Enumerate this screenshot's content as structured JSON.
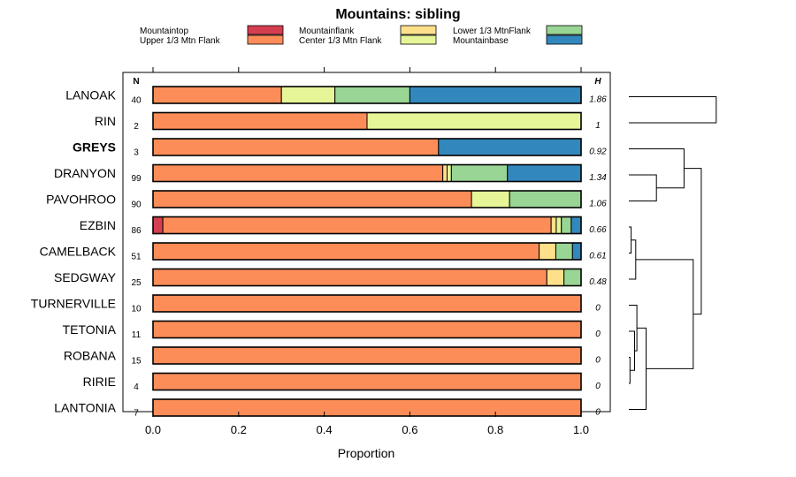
{
  "chart_data": {
    "type": "bar",
    "orientation": "horizontal",
    "stacked": true,
    "title": "Mountains: sibling",
    "xlabel": "Proportion",
    "ylabel": "",
    "xlim": [
      0,
      1
    ],
    "xticks": [
      "0.0",
      "0.2",
      "0.4",
      "0.6",
      "0.8",
      "1.0"
    ],
    "n_header": "N",
    "h_header": "H",
    "legend": [
      {
        "name": "Mountaintop",
        "color": "#d53e4f"
      },
      {
        "name": "Upper 1/3 Mtn Flank",
        "color": "#fc8d59"
      },
      {
        "name": "Mountainflank",
        "color": "#fee08b"
      },
      {
        "name": "Center 1/3 Mtn Flank",
        "color": "#e6f598"
      },
      {
        "name": "Lower 1/3 MtnFlank",
        "color": "#99d594"
      },
      {
        "name": "Mountainbase",
        "color": "#3288bd"
      }
    ],
    "categories": [
      "LANOAK",
      "RIN",
      "GREYS",
      "DRANYON",
      "PAVOHROO",
      "EZBIN",
      "CAMELBACK",
      "SEDGWAY",
      "TURNERVILLE",
      "TETONIA",
      "ROBANA",
      "RIRIE",
      "LANTONIA"
    ],
    "highlight": "GREYS",
    "n": [
      "40",
      "2",
      "3",
      "99",
      "90",
      "86",
      "51",
      "25",
      "10",
      "11",
      "15",
      "4",
      "7"
    ],
    "h": [
      "1.86",
      "1",
      "0.92",
      "1.34",
      "1.06",
      "0.66",
      "0.61",
      "0.48",
      "0",
      "0",
      "0",
      "0",
      "0"
    ],
    "series": [
      {
        "name": "Mountaintop",
        "values": [
          0,
          0,
          0,
          0,
          0,
          0.023,
          0,
          0,
          0,
          0,
          0,
          0,
          0
        ]
      },
      {
        "name": "Upper 1/3 Mtn Flank",
        "values": [
          0.3,
          0.5,
          0.667,
          0.677,
          0.744,
          0.907,
          0.902,
          0.92,
          1,
          1,
          1,
          1,
          1
        ]
      },
      {
        "name": "Mountainflank",
        "values": [
          0,
          0,
          0,
          0.01,
          0,
          0.012,
          0.039,
          0.04,
          0,
          0,
          0,
          0,
          0
        ]
      },
      {
        "name": "Center 1/3 Mtn Flank",
        "values": [
          0.125,
          0.5,
          0,
          0.01,
          0.089,
          0.012,
          0,
          0,
          0,
          0,
          0,
          0,
          0
        ]
      },
      {
        "name": "Lower 1/3 MtnFlank",
        "values": [
          0.175,
          0,
          0,
          0.131,
          0.167,
          0.023,
          0.039,
          0.04,
          0,
          0,
          0,
          0,
          0
        ]
      },
      {
        "name": "Mountainbase",
        "values": [
          0.4,
          0,
          0.333,
          0.172,
          0,
          0.023,
          0.02,
          0,
          0,
          0,
          0,
          0,
          0
        ]
      }
    ],
    "dendrogram": {
      "leaf_order": [
        "LANOAK",
        "RIN",
        "GREYS",
        "DRANYON",
        "PAVOHROO",
        "EZBIN",
        "CAMELBACK",
        "SEDGWAY",
        "TURNERVILLE",
        "TETONIA",
        "ROBANA",
        "RIRIE",
        "LANTONIA"
      ],
      "merges": [
        {
          "a": "L0",
          "b": "L1",
          "height": 0.76
        },
        {
          "a": "L3",
          "b": "L4",
          "height": 0.24
        },
        {
          "a": "L2",
          "b": "N1",
          "height": 0.48
        },
        {
          "a": "L5",
          "b": "L6",
          "height": 0.02
        },
        {
          "a": "N3",
          "b": "L7",
          "height": 0.06
        },
        {
          "a": "L10",
          "b": "L11",
          "height": 0.01
        },
        {
          "a": "L9",
          "b": "N5",
          "height": 0.05
        },
        {
          "a": "L8",
          "b": "N6",
          "height": 0.07
        },
        {
          "a": "N7",
          "b": "L12",
          "height": 0.15
        },
        {
          "a": "N4",
          "b": "N8",
          "height": 0.56
        },
        {
          "a": "N2",
          "b": "N9",
          "height": 0.63
        }
      ]
    }
  }
}
